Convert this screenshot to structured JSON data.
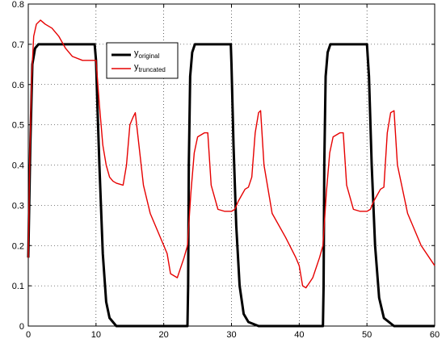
{
  "chart_data": {
    "type": "line",
    "title": "",
    "xlabel": "",
    "ylabel": "",
    "xlim": [
      0,
      60
    ],
    "ylim": [
      0,
      0.8
    ],
    "xticks": [
      0,
      10,
      20,
      30,
      40,
      50,
      60
    ],
    "yticks": [
      0,
      0.1,
      0.2,
      0.3,
      0.4,
      0.5,
      0.6,
      0.7,
      0.8
    ],
    "xtick_labels": [
      "0",
      "10",
      "20",
      "30",
      "40",
      "50",
      "60"
    ],
    "ytick_labels": [
      "0",
      "0.1",
      "0.2",
      "0.3",
      "0.4",
      "0.5",
      "0.6",
      "0.7",
      "0.8"
    ],
    "grid": true,
    "grid_style": "dotted",
    "legend_position": "top-center",
    "series": [
      {
        "name": "y",
        "name_sub": "original",
        "color": "#000000",
        "x": [
          0,
          0.3,
          0.6,
          1.0,
          1.5,
          2.0,
          3.0,
          5.0,
          8.0,
          9.8,
          10.0,
          10.2,
          10.5,
          11.0,
          11.5,
          12.0,
          13.0,
          20.0,
          23.5,
          23.6,
          23.7,
          23.9,
          24.2,
          24.6,
          25.0,
          26.0,
          29.9,
          30.0,
          30.3,
          30.7,
          31.2,
          31.8,
          32.5,
          34.0,
          43.5,
          43.6,
          43.7,
          43.9,
          44.2,
          44.6,
          45.0,
          46.0,
          50.0,
          50.3,
          50.7,
          51.2,
          51.8,
          52.5,
          54.0,
          60.0
        ],
        "y": [
          0.17,
          0.45,
          0.65,
          0.69,
          0.7,
          0.7,
          0.7,
          0.7,
          0.7,
          0.7,
          0.66,
          0.55,
          0.4,
          0.18,
          0.06,
          0.02,
          0.0,
          0.0,
          0.0,
          0.1,
          0.4,
          0.62,
          0.68,
          0.7,
          0.7,
          0.7,
          0.7,
          0.65,
          0.45,
          0.25,
          0.1,
          0.03,
          0.01,
          0.0,
          0.0,
          0.1,
          0.4,
          0.62,
          0.68,
          0.7,
          0.7,
          0.7,
          0.7,
          0.62,
          0.4,
          0.2,
          0.07,
          0.02,
          0.0,
          0.0
        ]
      },
      {
        "name": "y",
        "name_sub": "truncated",
        "color": "#e60000",
        "x": [
          0,
          0.2,
          0.5,
          0.8,
          1.2,
          1.8,
          2.5,
          3.5,
          4.5,
          5.5,
          6.5,
          8.0,
          9.5,
          10.0,
          10.5,
          11.0,
          11.5,
          12.0,
          12.5,
          13.0,
          14.0,
          14.5,
          15.0,
          15.5,
          15.8,
          16.0,
          17.0,
          18.0,
          19.5,
          20.0,
          20.5,
          21.0,
          22.0,
          23.0,
          23.5,
          24.0,
          24.5,
          25.0,
          26.0,
          26.5,
          27.0,
          28.0,
          29.0,
          30.0,
          30.5,
          31.0,
          32.0,
          32.5,
          33.0,
          33.5,
          34.0,
          34.3,
          34.8,
          36.0,
          38.0,
          39.5,
          40.0,
          40.5,
          41.0,
          42.0,
          43.0,
          43.5,
          44.0,
          44.5,
          45.0,
          46.0,
          46.5,
          47.0,
          48.0,
          49.0,
          50.0,
          50.5,
          51.0,
          52.0,
          52.5,
          53.0,
          53.5,
          54.0,
          54.5,
          56.0,
          58.0,
          60.0
        ],
        "y": [
          0.17,
          0.4,
          0.62,
          0.72,
          0.75,
          0.76,
          0.75,
          0.74,
          0.72,
          0.69,
          0.67,
          0.66,
          0.66,
          0.66,
          0.55,
          0.45,
          0.4,
          0.37,
          0.36,
          0.355,
          0.35,
          0.4,
          0.5,
          0.52,
          0.53,
          0.5,
          0.35,
          0.28,
          0.22,
          0.2,
          0.18,
          0.13,
          0.12,
          0.17,
          0.2,
          0.33,
          0.43,
          0.47,
          0.48,
          0.48,
          0.35,
          0.29,
          0.285,
          0.285,
          0.29,
          0.31,
          0.34,
          0.345,
          0.37,
          0.48,
          0.53,
          0.535,
          0.4,
          0.28,
          0.22,
          0.17,
          0.15,
          0.1,
          0.095,
          0.12,
          0.17,
          0.2,
          0.33,
          0.43,
          0.47,
          0.48,
          0.48,
          0.35,
          0.29,
          0.285,
          0.285,
          0.29,
          0.31,
          0.34,
          0.345,
          0.48,
          0.53,
          0.535,
          0.4,
          0.28,
          0.2,
          0.15
        ]
      }
    ]
  }
}
